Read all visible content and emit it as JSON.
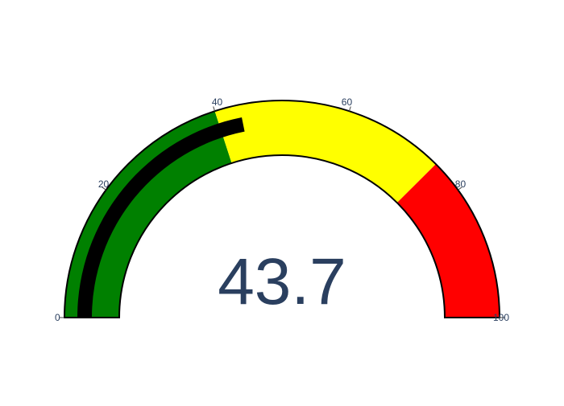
{
  "chart_data": {
    "type": "gauge",
    "value": 43.7,
    "value_label": "43.7",
    "range": [
      0,
      100
    ],
    "ticks": [
      {
        "value": 0,
        "label": "0"
      },
      {
        "value": 20,
        "label": "20"
      },
      {
        "value": 40,
        "label": "40"
      },
      {
        "value": 60,
        "label": "60"
      },
      {
        "value": 80,
        "label": "80"
      },
      {
        "value": 100,
        "label": "100"
      }
    ],
    "steps": [
      {
        "range": [
          0,
          40
        ],
        "color": "#008000"
      },
      {
        "range": [
          40,
          75
        ],
        "color": "#ffff00"
      },
      {
        "range": [
          75,
          100
        ],
        "color": "#ff0000"
      }
    ],
    "bar_color": "#000000",
    "border_color": "#000000",
    "text_color": "#2a3f5f",
    "tick_color": "#444444",
    "background": "#ffffff"
  }
}
